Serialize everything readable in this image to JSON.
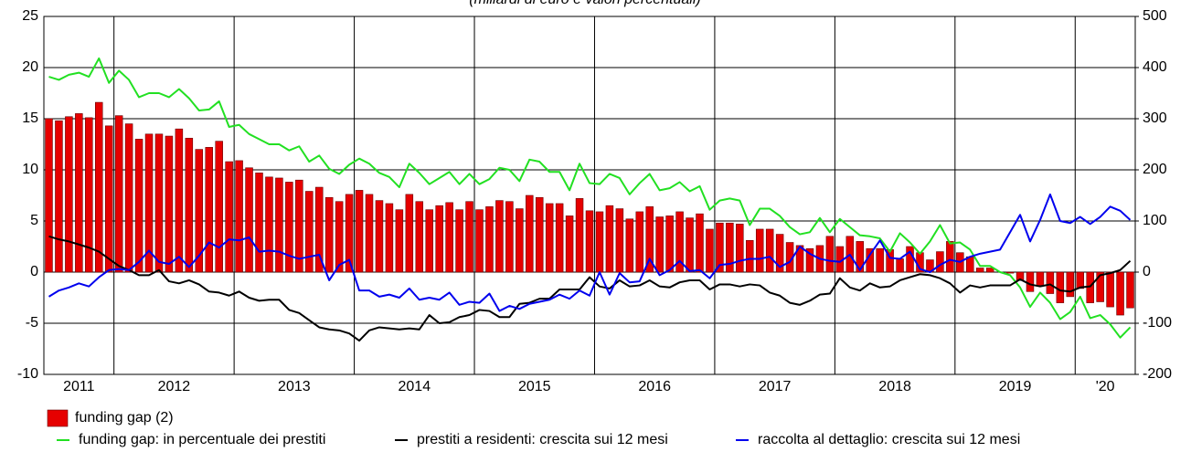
{
  "chart_data": {
    "type": "bar",
    "subtitle": "(miliardi di euro e valori percentuali)",
    "categories": [
      "2011",
      null,
      null,
      null,
      null,
      null,
      null,
      "2012",
      null,
      null,
      null,
      null,
      null,
      null,
      null,
      null,
      null,
      null,
      null,
      "2013",
      null,
      null,
      null,
      null,
      null,
      null,
      null,
      null,
      null,
      null,
      null,
      "2014",
      null,
      null,
      null,
      null,
      null,
      null,
      null,
      null,
      null,
      null,
      null,
      "2015",
      null,
      null,
      null,
      null,
      null,
      null,
      null,
      null,
      null,
      null,
      null,
      "2016",
      null,
      null,
      null,
      null,
      null,
      null,
      null,
      null,
      null,
      null,
      null,
      "2017",
      null,
      null,
      null,
      null,
      null,
      null,
      null,
      null,
      null,
      null,
      null,
      "2018",
      null,
      null,
      null,
      null,
      null,
      null,
      null,
      null,
      null,
      null,
      null,
      "2019",
      null,
      null,
      null,
      null,
      null,
      null,
      null,
      null,
      null,
      null,
      null,
      "'20",
      null,
      null,
      null,
      null,
      null
    ],
    "ylim": [
      -10,
      25
    ],
    "yticks": [
      -10,
      -5,
      0,
      5,
      10,
      15,
      20,
      25
    ],
    "y2lim": [
      -200,
      500
    ],
    "y2ticks": [
      -200,
      -100,
      0,
      100,
      200,
      300,
      400,
      500
    ],
    "grid": true,
    "series": [
      {
        "name": "funding gap (2)",
        "type": "bar",
        "axis": "y2",
        "color": "#e60000",
        "values": [
          300,
          296,
          304,
          310,
          302,
          332,
          286,
          306,
          290,
          260,
          270,
          270,
          266,
          280,
          262,
          240,
          244,
          256,
          216,
          218,
          204,
          194,
          186,
          184,
          176,
          180,
          158,
          166,
          146,
          138,
          152,
          160,
          152,
          140,
          134,
          122,
          152,
          138,
          122,
          130,
          136,
          122,
          138,
          122,
          128,
          140,
          138,
          124,
          150,
          146,
          134,
          134,
          110,
          144,
          120,
          118,
          130,
          124,
          104,
          118,
          128,
          108,
          110,
          118,
          106,
          114,
          84,
          96,
          96,
          94,
          62,
          84,
          84,
          74,
          58,
          52,
          46,
          52,
          70,
          50,
          70,
          60,
          46,
          46,
          44,
          26,
          50,
          38,
          24,
          40,
          60,
          38,
          30,
          8,
          8,
          0,
          -2,
          -16,
          -38,
          -26,
          -42,
          -60,
          -48,
          -32,
          -60,
          -58,
          -68,
          -84,
          -70
        ]
      },
      {
        "name": "funding gap: in percentuale dei prestiti",
        "type": "line",
        "color": "#22e022",
        "values": [
          19.1,
          18.8,
          19.3,
          19.5,
          19.1,
          20.9,
          18.5,
          19.7,
          18.8,
          17.1,
          17.5,
          17.5,
          17.1,
          17.9,
          17.0,
          15.8,
          15.9,
          16.7,
          14.2,
          14.4,
          13.5,
          13.0,
          12.5,
          12.5,
          11.9,
          12.3,
          10.8,
          11.4,
          10.1,
          9.6,
          10.5,
          11.1,
          10.6,
          9.7,
          9.3,
          8.3,
          10.6,
          9.7,
          8.6,
          9.2,
          9.8,
          8.6,
          9.6,
          8.6,
          9.1,
          10.2,
          10.0,
          8.9,
          11.0,
          10.8,
          9.8,
          9.8,
          8.0,
          10.6,
          8.7,
          8.6,
          9.6,
          9.2,
          7.6,
          8.7,
          9.6,
          8.0,
          8.2,
          8.8,
          7.9,
          8.4,
          6.1,
          7.0,
          7.2,
          7.0,
          4.6,
          6.2,
          6.2,
          5.5,
          4.4,
          3.7,
          3.9,
          5.3,
          3.9,
          5.2,
          4.4,
          3.6,
          3.5,
          3.3,
          2.0,
          3.8,
          2.9,
          1.8,
          3.0,
          4.6,
          2.8,
          2.9,
          2.2,
          0.6,
          0.6,
          0.0,
          -0.3,
          -1.5,
          -3.4,
          -2.0,
          -3.0,
          -4.6,
          -3.9,
          -2.4,
          -4.5,
          -4.2,
          -5.1,
          -6.4,
          -5.4
        ]
      },
      {
        "name": "prestiti a residenti: crescita sui 12 mesi",
        "type": "line",
        "color": "#000000",
        "values": [
          3.5,
          3.2,
          3.0,
          2.7,
          2.4,
          2.0,
          1.3,
          0.6,
          0.2,
          -0.3,
          -0.3,
          0.2,
          -0.9,
          -1.1,
          -0.8,
          -1.2,
          -1.9,
          -2.0,
          -2.3,
          -1.9,
          -2.5,
          -2.8,
          -2.7,
          -2.7,
          -3.7,
          -4.0,
          -4.7,
          -5.4,
          -5.6,
          -5.7,
          -6.0,
          -6.7,
          -5.7,
          -5.4,
          -5.5,
          -5.6,
          -5.5,
          -5.6,
          -4.2,
          -5.0,
          -4.9,
          -4.4,
          -4.2,
          -3.7,
          -3.8,
          -4.4,
          -4.4,
          -3.1,
          -3.0,
          -2.6,
          -2.6,
          -1.7,
          -1.7,
          -1.7,
          -0.5,
          -1.4,
          -1.6,
          -0.8,
          -1.4,
          -1.3,
          -0.8,
          -1.4,
          -1.5,
          -1.0,
          -0.8,
          -0.8,
          -1.7,
          -1.2,
          -1.2,
          -1.4,
          -1.2,
          -1.3,
          -2.0,
          -2.3,
          -3.0,
          -3.2,
          -2.8,
          -2.2,
          -2.1,
          -0.6,
          -1.5,
          -1.8,
          -1.1,
          -1.5,
          -1.4,
          -0.8,
          -0.5,
          -0.2,
          -0.3,
          -0.6,
          -1.1,
          -2.0,
          -1.3,
          -1.5,
          -1.3,
          -1.3,
          -1.3,
          -0.7,
          -1.2,
          -1.4,
          -1.2,
          -1.8,
          -1.9,
          -1.5,
          -1.4,
          -0.3,
          -0.1,
          0.2,
          1.1
        ]
      },
      {
        "name": "raccolta al dettaglio: crescita sui 12 mesi",
        "type": "line",
        "color": "#0000ee",
        "values": [
          -2.4,
          -1.8,
          -1.5,
          -1.1,
          -1.4,
          -0.5,
          0.2,
          0.3,
          0.2,
          1.0,
          2.1,
          1.0,
          0.8,
          1.5,
          0.5,
          1.6,
          2.9,
          2.4,
          3.2,
          3.1,
          3.4,
          2.0,
          2.1,
          2.0,
          1.6,
          1.3,
          1.5,
          1.7,
          -0.8,
          0.7,
          1.2,
          -1.8,
          -1.8,
          -2.4,
          -2.2,
          -2.5,
          -1.6,
          -2.7,
          -2.5,
          -2.7,
          -2.0,
          -3.2,
          -2.9,
          -3.0,
          -2.1,
          -3.8,
          -3.3,
          -3.6,
          -3.1,
          -2.9,
          -2.7,
          -2.2,
          -2.6,
          -1.8,
          -2.3,
          0.0,
          -2.2,
          -0.1,
          -1.0,
          -0.9,
          1.3,
          -0.3,
          0.2,
          1.1,
          0.1,
          0.2,
          -0.6,
          0.7,
          0.8,
          1.1,
          1.3,
          1.3,
          1.5,
          0.5,
          1.0,
          2.5,
          1.8,
          1.3,
          1.1,
          1.0,
          1.7,
          0.2,
          1.7,
          3.1,
          1.4,
          1.3,
          2.0,
          0.3,
          0.0,
          0.7,
          1.2,
          1.0,
          1.5,
          1.8,
          2.0,
          2.2,
          3.9,
          5.6,
          3.0,
          5.1,
          7.6,
          5.0,
          4.8,
          5.4,
          4.7,
          5.4,
          6.4,
          6.0,
          5.1
        ]
      }
    ]
  }
}
